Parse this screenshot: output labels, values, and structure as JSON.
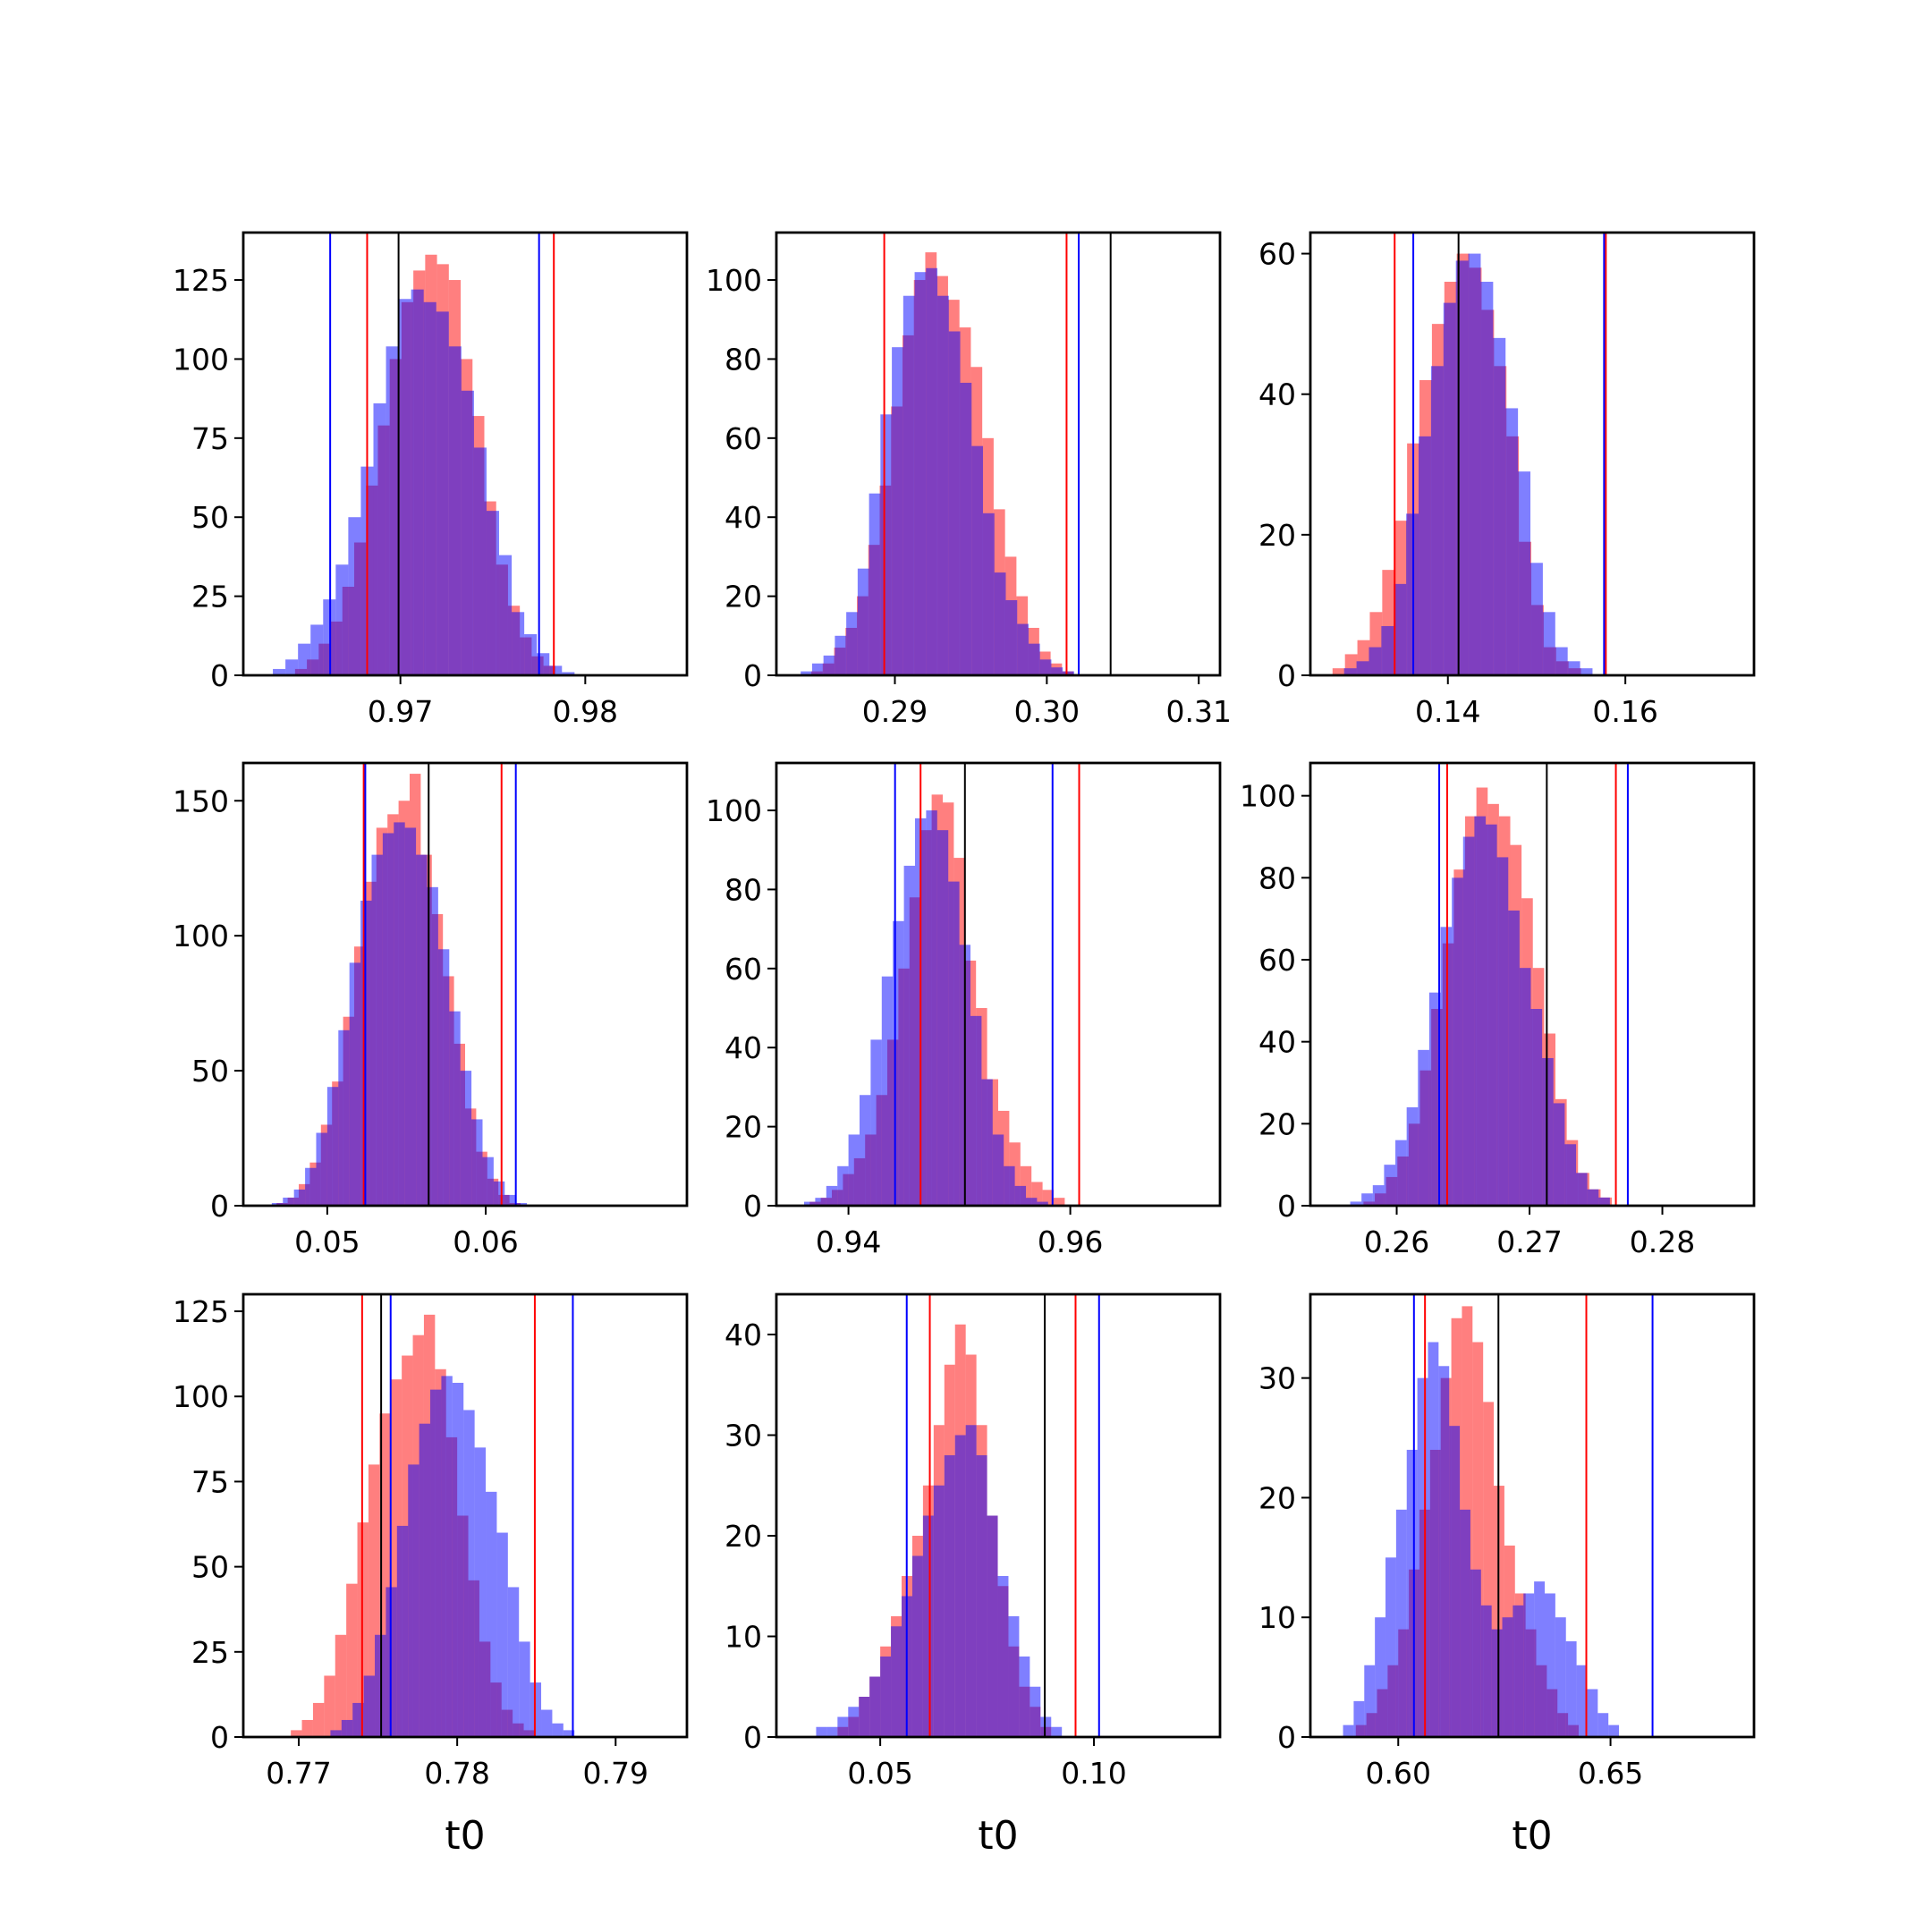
{
  "colors": {
    "red": "#ff0000",
    "blue": "#0000ff",
    "black": "#000000",
    "red_fill": "rgba(255,0,0,0.5)",
    "blue_fill": "rgba(0,0,255,0.5)"
  },
  "chart_data": [
    {
      "type": "histogram",
      "row": 0,
      "col": 0,
      "xlim": [
        0.9615,
        0.9855
      ],
      "ylim": [
        0,
        140
      ],
      "xticks": [
        {
          "value": 0.97,
          "label": "0.97"
        },
        {
          "value": 0.98,
          "label": "0.98"
        }
      ],
      "yticks": [
        {
          "value": 0,
          "label": "0"
        },
        {
          "value": 25,
          "label": "25"
        },
        {
          "value": 50,
          "label": "50"
        },
        {
          "value": 75,
          "label": "75"
        },
        {
          "value": 100,
          "label": "100"
        },
        {
          "value": 125,
          "label": "125"
        }
      ],
      "xlabel": "",
      "red": {
        "start": 0.9643,
        "width": 0.00064,
        "counts": [
          2,
          5,
          10,
          17,
          28,
          42,
          60,
          79,
          100,
          118,
          128,
          133,
          130,
          125,
          100,
          82,
          55,
          35,
          22,
          12,
          6,
          3
        ]
      },
      "blue": {
        "start": 0.9631,
        "width": 0.00068,
        "counts": [
          2,
          5,
          10,
          16,
          24,
          35,
          50,
          66,
          86,
          104,
          119,
          122,
          118,
          115,
          104,
          90,
          72,
          52,
          38,
          20,
          13,
          7,
          3,
          1
        ]
      },
      "vlines": {
        "red": [
          0.9682,
          0.9783
        ],
        "blue": [
          0.9662,
          0.9775
        ],
        "black": [
          0.9699
        ]
      }
    },
    {
      "type": "histogram",
      "row": 0,
      "col": 1,
      "xlim": [
        0.2822,
        0.3114
      ],
      "ylim": [
        0,
        112
      ],
      "xticks": [
        {
          "value": 0.29,
          "label": "0.29"
        },
        {
          "value": 0.3,
          "label": "0.30"
        },
        {
          "value": 0.31,
          "label": "0.31"
        }
      ],
      "yticks": [
        {
          "value": 0,
          "label": "0"
        },
        {
          "value": 20,
          "label": "20"
        },
        {
          "value": 40,
          "label": "40"
        },
        {
          "value": 60,
          "label": "60"
        },
        {
          "value": 80,
          "label": "80"
        },
        {
          "value": 100,
          "label": "100"
        }
      ],
      "xlabel": "",
      "red": {
        "start": 0.2845,
        "width": 0.00075,
        "counts": [
          1,
          3,
          7,
          12,
          20,
          33,
          48,
          68,
          86,
          100,
          107,
          101,
          95,
          88,
          78,
          60,
          42,
          30,
          20,
          12,
          6,
          3,
          1
        ]
      },
      "blue": {
        "start": 0.2838,
        "width": 0.00075,
        "counts": [
          1,
          3,
          5,
          10,
          16,
          27,
          46,
          66,
          83,
          96,
          102,
          103,
          96,
          87,
          74,
          58,
          41,
          26,
          19,
          13,
          8,
          4,
          2,
          1
        ]
      },
      "vlines": {
        "red": [
          0.2893,
          0.3013
        ],
        "blue": [
          0.3021
        ],
        "black": [
          0.3042
        ]
      }
    },
    {
      "type": "histogram",
      "row": 0,
      "col": 2,
      "xlim": [
        0.1245,
        0.1745
      ],
      "ylim": [
        0,
        63
      ],
      "xticks": [
        {
          "value": 0.14,
          "label": "0.14"
        },
        {
          "value": 0.16,
          "label": "0.16"
        }
      ],
      "yticks": [
        {
          "value": 0,
          "label": "0"
        },
        {
          "value": 20,
          "label": "20"
        },
        {
          "value": 40,
          "label": "40"
        },
        {
          "value": 60,
          "label": "60"
        }
      ],
      "xlabel": "",
      "red": {
        "start": 0.127,
        "width": 0.0014,
        "counts": [
          1,
          3,
          5,
          9,
          15,
          22,
          33,
          42,
          50,
          56,
          60,
          58,
          52,
          44,
          34,
          19,
          10,
          4,
          2,
          1
        ]
      },
      "blue": {
        "start": 0.1283,
        "width": 0.0014,
        "counts": [
          1,
          2,
          4,
          7,
          13,
          23,
          34,
          44,
          53,
          59,
          60,
          56,
          48,
          38,
          29,
          16,
          9,
          4,
          2,
          1
        ]
      },
      "vlines": {
        "red": [
          0.134,
          0.1578
        ],
        "blue": [
          0.1361,
          0.1576
        ],
        "black": [
          0.1412
        ]
      }
    },
    {
      "type": "histogram",
      "row": 1,
      "col": 0,
      "xlim": [
        0.0447,
        0.0727
      ],
      "ylim": [
        0,
        164
      ],
      "xticks": [
        {
          "value": 0.05,
          "label": "0.05"
        },
        {
          "value": 0.06,
          "label": "0.06"
        }
      ],
      "yticks": [
        {
          "value": 0,
          "label": "0"
        },
        {
          "value": 50,
          "label": "50"
        },
        {
          "value": 100,
          "label": "100"
        },
        {
          "value": 150,
          "label": "150"
        }
      ],
      "xlabel": "",
      "red": {
        "start": 0.0468,
        "width": 0.0007,
        "counts": [
          1,
          3,
          8,
          16,
          30,
          46,
          70,
          96,
          120,
          140,
          145,
          150,
          160,
          130,
          108,
          85,
          60,
          36,
          20,
          10,
          4,
          1
        ]
      },
      "blue": {
        "start": 0.0465,
        "width": 0.0007,
        "counts": [
          1,
          3,
          6,
          14,
          27,
          44,
          65,
          90,
          113,
          130,
          138,
          142,
          140,
          130,
          118,
          95,
          72,
          50,
          32,
          18,
          9,
          4,
          1
        ]
      },
      "vlines": {
        "red": [
          0.0523,
          0.061
        ],
        "blue": [
          0.0524,
          0.0619
        ],
        "black": [
          0.0564
        ]
      }
    },
    {
      "type": "histogram",
      "row": 1,
      "col": 1,
      "xlim": [
        0.9335,
        0.9735
      ],
      "ylim": [
        0,
        112
      ],
      "xticks": [
        {
          "value": 0.94,
          "label": "0.94"
        },
        {
          "value": 0.96,
          "label": "0.96"
        }
      ],
      "yticks": [
        {
          "value": 0,
          "label": "0"
        },
        {
          "value": 20,
          "label": "20"
        },
        {
          "value": 40,
          "label": "40"
        },
        {
          "value": 60,
          "label": "60"
        },
        {
          "value": 80,
          "label": "80"
        },
        {
          "value": 100,
          "label": "100"
        }
      ],
      "xlabel": "",
      "red": {
        "start": 0.9365,
        "width": 0.001,
        "counts": [
          1,
          2,
          4,
          8,
          12,
          18,
          28,
          42,
          60,
          78,
          95,
          104,
          102,
          88,
          62,
          50,
          32,
          24,
          16,
          10,
          6,
          4,
          2
        ]
      },
      "blue": {
        "start": 0.936,
        "width": 0.001,
        "counts": [
          1,
          2,
          5,
          10,
          18,
          28,
          42,
          58,
          72,
          86,
          98,
          100,
          95,
          82,
          66,
          48,
          32,
          18,
          10,
          5,
          2,
          1
        ]
      },
      "vlines": {
        "red": [
          0.9465,
          0.9608
        ],
        "blue": [
          0.9442,
          0.9584
        ],
        "black": [
          0.9505
        ]
      }
    },
    {
      "type": "histogram",
      "row": 1,
      "col": 2,
      "xlim": [
        0.2535,
        0.2869
      ],
      "ylim": [
        0,
        108
      ],
      "xticks": [
        {
          "value": 0.26,
          "label": "0.26"
        },
        {
          "value": 0.27,
          "label": "0.27"
        },
        {
          "value": 0.28,
          "label": "0.28"
        }
      ],
      "yticks": [
        {
          "value": 0,
          "label": "0"
        },
        {
          "value": 20,
          "label": "20"
        },
        {
          "value": 40,
          "label": "40"
        },
        {
          "value": 60,
          "label": "60"
        },
        {
          "value": 80,
          "label": "80"
        },
        {
          "value": 100,
          "label": "100"
        }
      ],
      "xlabel": "",
      "red": {
        "start": 0.2575,
        "width": 0.00085,
        "counts": [
          1,
          3,
          7,
          12,
          20,
          33,
          48,
          64,
          82,
          95,
          102,
          98,
          95,
          88,
          75,
          58,
          42,
          26,
          16,
          8,
          4,
          2
        ]
      },
      "blue": {
        "start": 0.2565,
        "width": 0.00085,
        "counts": [
          1,
          3,
          5,
          10,
          16,
          24,
          38,
          52,
          68,
          80,
          90,
          95,
          93,
          85,
          72,
          58,
          48,
          36,
          25,
          15,
          8,
          4,
          2
        ]
      },
      "vlines": {
        "red": [
          0.2638,
          0.2765
        ],
        "blue": [
          0.2632,
          0.2774
        ],
        "black": [
          0.2713
        ]
      }
    },
    {
      "type": "histogram",
      "row": 2,
      "col": 0,
      "xlim": [
        0.7665,
        0.7945
      ],
      "ylim": [
        0,
        130
      ],
      "xticks": [
        {
          "value": 0.77,
          "label": "0.77"
        },
        {
          "value": 0.78,
          "label": "0.78"
        },
        {
          "value": 0.79,
          "label": "0.79"
        }
      ],
      "yticks": [
        {
          "value": 0,
          "label": "0"
        },
        {
          "value": 25,
          "label": "25"
        },
        {
          "value": 50,
          "label": "50"
        },
        {
          "value": 75,
          "label": "75"
        },
        {
          "value": 100,
          "label": "100"
        },
        {
          "value": 125,
          "label": "125"
        }
      ],
      "xlabel": "t0",
      "red": {
        "start": 0.7695,
        "width": 0.0007,
        "counts": [
          2,
          5,
          10,
          18,
          30,
          45,
          63,
          80,
          95,
          105,
          112,
          118,
          124,
          108,
          88,
          65,
          46,
          28,
          16,
          8,
          4,
          2
        ]
      },
      "blue": {
        "start": 0.772,
        "width": 0.0007,
        "counts": [
          2,
          5,
          10,
          18,
          30,
          44,
          62,
          80,
          92,
          102,
          106,
          104,
          96,
          85,
          72,
          60,
          44,
          28,
          16,
          8,
          4,
          2
        ]
      },
      "vlines": {
        "red": [
          0.774,
          0.7849
        ],
        "blue": [
          0.7758,
          0.7873
        ],
        "black": [
          0.7752
        ]
      }
    },
    {
      "type": "histogram",
      "row": 2,
      "col": 1,
      "xlim": [
        0.0257,
        0.1295
      ],
      "ylim": [
        0,
        44
      ],
      "xticks": [
        {
          "value": 0.05,
          "label": "0.05"
        },
        {
          "value": 0.1,
          "label": "0.10"
        }
      ],
      "yticks": [
        {
          "value": 0,
          "label": "0"
        },
        {
          "value": 10,
          "label": "10"
        },
        {
          "value": 20,
          "label": "20"
        },
        {
          "value": 30,
          "label": "30"
        },
        {
          "value": 40,
          "label": "40"
        }
      ],
      "xlabel": "t0",
      "red": {
        "start": 0.04,
        "width": 0.0025,
        "counts": [
          1,
          2,
          4,
          6,
          9,
          12,
          16,
          20,
          25,
          31,
          37,
          41,
          38,
          31,
          22,
          15,
          9,
          5,
          3,
          1
        ]
      },
      "blue": {
        "start": 0.035,
        "width": 0.0025,
        "counts": [
          1,
          1,
          2,
          3,
          4,
          6,
          8,
          11,
          14,
          18,
          22,
          25,
          28,
          30,
          31,
          28,
          22,
          16,
          12,
          8,
          5,
          2,
          1
        ]
      },
      "vlines": {
        "red": [
          0.0616,
          0.0957
        ],
        "blue": [
          0.0562,
          0.1012
        ],
        "black": [
          0.0885
        ]
      }
    },
    {
      "type": "histogram",
      "row": 2,
      "col": 2,
      "xlim": [
        0.5793,
        0.6838
      ],
      "ylim": [
        0,
        37
      ],
      "xticks": [
        {
          "value": 0.6,
          "label": "0.60"
        },
        {
          "value": 0.65,
          "label": "0.65"
        }
      ],
      "yticks": [
        {
          "value": 0,
          "label": "0"
        },
        {
          "value": 10,
          "label": "10"
        },
        {
          "value": 20,
          "label": "20"
        },
        {
          "value": 30,
          "label": "30"
        }
      ],
      "xlabel": "t0",
      "red": {
        "start": 0.59,
        "width": 0.0025,
        "counts": [
          1,
          2,
          4,
          6,
          9,
          14,
          19,
          24,
          30,
          35,
          36,
          33,
          28,
          21,
          16,
          12,
          9,
          6,
          4,
          2,
          1
        ]
      },
      "blue": {
        "start": 0.587,
        "width": 0.0025,
        "counts": [
          1,
          3,
          6,
          10,
          15,
          19,
          24,
          30,
          33,
          31,
          26,
          19,
          14,
          11,
          9,
          10,
          11,
          12,
          13,
          12,
          10,
          8,
          6,
          4,
          2,
          1
        ]
      },
      "vlines": {
        "red": [
          0.6063,
          0.6443
        ],
        "blue": [
          0.6037,
          0.6599
        ],
        "black": [
          0.6236
        ]
      }
    }
  ]
}
